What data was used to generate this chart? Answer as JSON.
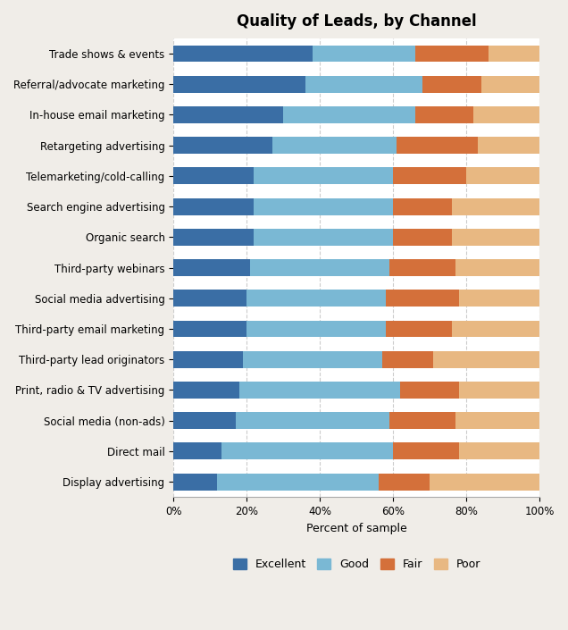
{
  "title": "Quality of Leads, by Channel",
  "xlabel": "Percent of sample",
  "categories": [
    "Trade shows & events",
    "Referral/advocate marketing",
    "In-house email marketing",
    "Retargeting advertising",
    "Telemarketing/cold-calling",
    "Search engine advertising",
    "Organic search",
    "Third-party webinars",
    "Social media advertising",
    "Third-party email marketing",
    "Third-party lead originators",
    "Print, radio & TV advertising",
    "Social media (non-ads)",
    "Direct mail",
    "Display advertising"
  ],
  "excellent": [
    38,
    36,
    30,
    27,
    22,
    22,
    22,
    21,
    20,
    20,
    19,
    18,
    17,
    13,
    12
  ],
  "good": [
    28,
    32,
    36,
    34,
    38,
    38,
    38,
    38,
    38,
    38,
    38,
    44,
    42,
    47,
    44
  ],
  "fair": [
    20,
    16,
    16,
    22,
    20,
    16,
    16,
    18,
    20,
    18,
    14,
    16,
    18,
    18,
    14
  ],
  "poor": [
    14,
    16,
    18,
    17,
    20,
    24,
    24,
    23,
    22,
    24,
    29,
    22,
    23,
    22,
    30
  ],
  "color_excellent": "#3a6ea5",
  "color_good": "#7ab8d4",
  "color_fair": "#d4703a",
  "color_poor": "#e8b882",
  "legend_labels": [
    "Excellent",
    "Good",
    "Fair",
    "Poor"
  ],
  "bar_height": 0.55,
  "figsize": [
    6.36,
    7.05
  ],
  "dpi": 100,
  "background_color": "#f0ede8",
  "bar_area_color": "#ffffff",
  "title_fontsize": 12,
  "label_fontsize": 9,
  "tick_fontsize": 8.5,
  "ytick_fontsize": 8.5,
  "legend_fontsize": 9,
  "grid_color": "#cccccc",
  "spine_color": "#aaaaaa"
}
